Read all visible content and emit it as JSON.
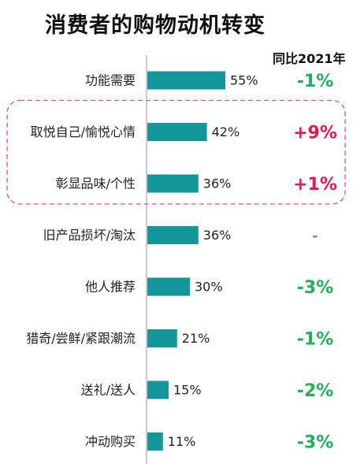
{
  "chart_data": {
    "type": "bar",
    "orientation": "horizontal",
    "title": "消费者的购物动机转变",
    "yoy_header": "同比2021年",
    "categories": [
      "功能需要",
      "取悦自己/愉悦心情",
      "彰显品味/个性",
      "旧产品损坏/淘汰",
      "他人推荐",
      "猎奇/尝鲜/紧跟潮流",
      "送礼/送人",
      "冲动购买"
    ],
    "values": [
      55,
      42,
      36,
      36,
      30,
      21,
      15,
      11
    ],
    "value_labels": [
      "55%",
      "42%",
      "36%",
      "36%",
      "30%",
      "21%",
      "15%",
      "11%"
    ],
    "yoy_changes": [
      "-1%",
      "+9%",
      "+1%",
      "-",
      "-3%",
      "-1%",
      "-2%",
      "-3%"
    ],
    "highlighted_categories": [
      "取悦自己/愉悦心情",
      "彰显品味/个性"
    ],
    "colors": {
      "bar": "#13979b",
      "positive": "#e8174f",
      "negative": "#22b05b",
      "neutral": "#8a8a8a",
      "highlight_border": "#e05577",
      "axis": "#9a9a9a"
    }
  }
}
